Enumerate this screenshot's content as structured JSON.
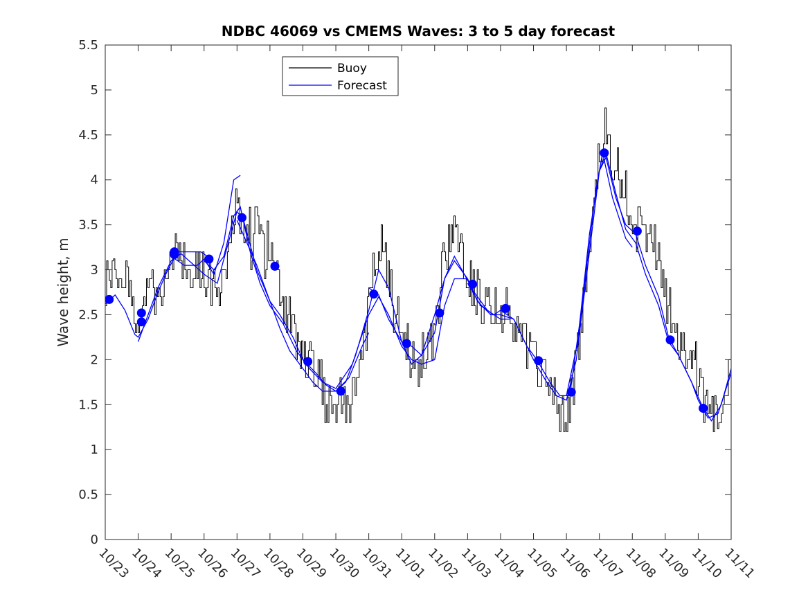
{
  "chart_data": {
    "type": "line",
    "title": "NDBC 46069 vs CMEMS Waves: 3 to 5 day forecast",
    "xlabel": "",
    "ylabel": "Wave height, m",
    "xlim": [
      0,
      19
    ],
    "ylim": [
      0,
      5.5
    ],
    "yticks": [
      0,
      0.5,
      1,
      1.5,
      2,
      2.5,
      3,
      3.5,
      4,
      4.5,
      5,
      5.5
    ],
    "ytick_labels": [
      "0",
      "0.5",
      "1",
      "1.5",
      "2",
      "2.5",
      "3",
      "3.5",
      "4",
      "4.5",
      "5",
      "5.5"
    ],
    "xticks": [
      0,
      1,
      2,
      3,
      4,
      5,
      6,
      7,
      8,
      9,
      10,
      11,
      12,
      13,
      14,
      15,
      16,
      17,
      18,
      19
    ],
    "xtick_labels": [
      "10/23",
      "10/24",
      "10/25",
      "10/26",
      "10/27",
      "10/28",
      "10/29",
      "10/30",
      "10/31",
      "11/01",
      "11/02",
      "11/03",
      "11/04",
      "11/05",
      "11/06",
      "11/07",
      "11/08",
      "11/09",
      "11/10",
      "11/11"
    ],
    "grid": false,
    "legend": {
      "position": "top-left-center",
      "entries": [
        "Buoy",
        "Forecast"
      ]
    },
    "colors": {
      "buoy": "#000000",
      "forecast": "#0000ff",
      "axis": "#262626"
    },
    "buoy_anchors": [
      [
        0.0,
        2.9
      ],
      [
        0.2,
        2.95
      ],
      [
        0.4,
        3.0
      ],
      [
        0.6,
        2.9
      ],
      [
        0.8,
        2.55
      ],
      [
        1.0,
        2.2
      ],
      [
        1.2,
        2.75
      ],
      [
        1.4,
        2.9
      ],
      [
        1.6,
        2.6
      ],
      [
        1.8,
        2.9
      ],
      [
        2.0,
        3.0
      ],
      [
        2.2,
        3.2
      ],
      [
        2.4,
        3.05
      ],
      [
        2.6,
        3.0
      ],
      [
        2.8,
        3.1
      ],
      [
        3.0,
        2.95
      ],
      [
        3.2,
        2.9
      ],
      [
        3.4,
        2.75
      ],
      [
        3.6,
        2.95
      ],
      [
        3.8,
        3.35
      ],
      [
        4.0,
        3.8
      ],
      [
        4.2,
        3.3
      ],
      [
        4.4,
        3.2
      ],
      [
        4.6,
        3.6
      ],
      [
        4.8,
        3.2
      ],
      [
        5.0,
        3.1
      ],
      [
        5.2,
        3.0
      ],
      [
        5.4,
        2.6
      ],
      [
        5.6,
        2.45
      ],
      [
        5.8,
        2.25
      ],
      [
        6.0,
        2.1
      ],
      [
        6.2,
        2.0
      ],
      [
        6.4,
        1.9
      ],
      [
        6.6,
        1.6
      ],
      [
        6.8,
        1.5
      ],
      [
        7.0,
        1.5
      ],
      [
        7.2,
        1.5
      ],
      [
        7.4,
        1.55
      ],
      [
        7.6,
        1.75
      ],
      [
        7.8,
        2.1
      ],
      [
        8.0,
        2.6
      ],
      [
        8.2,
        3.1
      ],
      [
        8.4,
        3.3
      ],
      [
        8.6,
        2.8
      ],
      [
        8.8,
        2.5
      ],
      [
        9.0,
        2.3
      ],
      [
        9.2,
        2.1
      ],
      [
        9.4,
        1.85
      ],
      [
        9.6,
        2.0
      ],
      [
        9.8,
        2.05
      ],
      [
        10.0,
        2.3
      ],
      [
        10.2,
        2.9
      ],
      [
        10.4,
        3.3
      ],
      [
        10.6,
        3.35
      ],
      [
        10.8,
        3.2
      ],
      [
        11.0,
        2.95
      ],
      [
        11.2,
        2.75
      ],
      [
        11.4,
        2.65
      ],
      [
        11.6,
        2.6
      ],
      [
        11.8,
        2.65
      ],
      [
        12.0,
        2.6
      ],
      [
        12.2,
        2.5
      ],
      [
        12.4,
        2.35
      ],
      [
        12.6,
        2.3
      ],
      [
        12.8,
        2.15
      ],
      [
        13.0,
        2.0
      ],
      [
        13.2,
        1.85
      ],
      [
        13.4,
        1.7
      ],
      [
        13.6,
        1.6
      ],
      [
        13.8,
        1.45
      ],
      [
        14.0,
        1.25
      ],
      [
        14.2,
        1.7
      ],
      [
        14.4,
        2.3
      ],
      [
        14.6,
        2.9
      ],
      [
        14.8,
        3.6
      ],
      [
        15.0,
        4.45
      ],
      [
        15.2,
        4.6
      ],
      [
        15.4,
        4.0
      ],
      [
        15.6,
        3.8
      ],
      [
        15.8,
        3.9
      ],
      [
        16.0,
        3.5
      ],
      [
        16.2,
        3.45
      ],
      [
        16.4,
        3.3
      ],
      [
        16.6,
        3.25
      ],
      [
        16.8,
        3.1
      ],
      [
        17.0,
        2.7
      ],
      [
        17.2,
        2.4
      ],
      [
        17.4,
        2.2
      ],
      [
        17.6,
        2.15
      ],
      [
        17.8,
        2.0
      ],
      [
        18.0,
        1.8
      ],
      [
        18.2,
        1.45
      ],
      [
        18.4,
        1.35
      ],
      [
        18.6,
        1.4
      ],
      [
        18.8,
        1.55
      ],
      [
        19.0,
        1.85
      ]
    ],
    "forecast_segments": [
      [
        [
          0.0,
          2.62
        ],
        [
          0.3,
          2.72
        ],
        [
          0.6,
          2.55
        ],
        [
          0.9,
          2.28
        ],
        [
          1.0,
          2.25
        ],
        [
          1.3,
          2.45
        ],
        [
          1.6,
          2.75
        ],
        [
          1.9,
          3.0
        ],
        [
          2.2,
          3.2
        ],
        [
          2.5,
          3.2
        ],
        [
          2.9,
          3.2
        ],
        [
          3.1,
          3.15
        ]
      ],
      [
        [
          1.0,
          2.2
        ],
        [
          1.3,
          2.5
        ],
        [
          1.6,
          2.8
        ],
        [
          2.0,
          3.1
        ],
        [
          2.3,
          3.18
        ],
        [
          2.7,
          3.05
        ],
        [
          3.0,
          2.95
        ],
        [
          3.4,
          2.85
        ],
        [
          3.7,
          3.25
        ],
        [
          4.0,
          3.65
        ],
        [
          4.2,
          3.55
        ],
        [
          4.6,
          3.0
        ],
        [
          5.0,
          2.65
        ],
        [
          5.3,
          2.5
        ],
        [
          5.7,
          2.25
        ],
        [
          6.0,
          2.0
        ],
        [
          6.4,
          1.85
        ],
        [
          6.7,
          1.72
        ],
        [
          7.0,
          1.65
        ],
        [
          7.4,
          1.8
        ],
        [
          7.8,
          2.15
        ],
        [
          8.0,
          2.3
        ]
      ],
      [
        [
          2.0,
          3.15
        ],
        [
          2.4,
          3.05
        ],
        [
          2.8,
          3.05
        ],
        [
          3.0,
          3.12
        ],
        [
          3.3,
          2.95
        ],
        [
          3.6,
          3.3
        ],
        [
          3.9,
          4.0
        ],
        [
          4.1,
          4.05
        ]
      ],
      [
        [
          3.0,
          3.1
        ],
        [
          3.3,
          3.0
        ],
        [
          3.6,
          3.15
        ],
        [
          3.9,
          3.6
        ],
        [
          4.1,
          3.7
        ],
        [
          4.4,
          3.2
        ],
        [
          4.7,
          2.85
        ],
        [
          5.0,
          2.6
        ],
        [
          5.4,
          2.4
        ],
        [
          5.8,
          2.1
        ],
        [
          6.2,
          1.9
        ],
        [
          6.6,
          1.75
        ],
        [
          7.0,
          1.68
        ],
        [
          7.5,
          1.95
        ],
        [
          8.0,
          2.5
        ],
        [
          8.3,
          2.7
        ],
        [
          8.6,
          2.5
        ],
        [
          9.0,
          2.15
        ],
        [
          9.3,
          2.0
        ],
        [
          9.6,
          1.95
        ],
        [
          10.0,
          2.0
        ],
        [
          10.3,
          2.6
        ],
        [
          10.6,
          2.9
        ],
        [
          11.0,
          2.9
        ]
      ],
      [
        [
          4.0,
          3.55
        ],
        [
          4.3,
          3.3
        ],
        [
          4.6,
          3.05
        ],
        [
          5.0,
          2.65
        ],
        [
          5.3,
          2.35
        ],
        [
          5.6,
          2.1
        ],
        [
          6.0,
          1.9
        ],
        [
          6.3,
          1.75
        ],
        [
          6.6,
          1.65
        ],
        [
          7.0,
          1.65
        ],
        [
          7.3,
          1.75
        ],
        [
          7.6,
          2.05
        ],
        [
          8.0,
          2.55
        ],
        [
          8.3,
          3.0
        ],
        [
          8.6,
          2.8
        ],
        [
          9.0,
          2.2
        ],
        [
          9.3,
          1.95
        ],
        [
          9.6,
          2.05
        ],
        [
          10.0,
          2.3
        ],
        [
          10.3,
          2.9
        ],
        [
          10.6,
          3.15
        ],
        [
          10.9,
          2.95
        ],
        [
          11.2,
          2.75
        ],
        [
          11.6,
          2.55
        ],
        [
          12.0,
          2.45
        ],
        [
          12.3,
          2.45
        ]
      ],
      [
        [
          8.0,
          2.8
        ],
        [
          8.3,
          2.72
        ],
        [
          8.6,
          2.45
        ],
        [
          9.0,
          2.2
        ],
        [
          9.3,
          2.15
        ],
        [
          9.6,
          2.05
        ],
        [
          10.0,
          2.5
        ],
        [
          10.3,
          2.9
        ],
        [
          10.6,
          3.1
        ],
        [
          11.0,
          2.9
        ],
        [
          11.3,
          2.65
        ],
        [
          11.7,
          2.5
        ],
        [
          12.0,
          2.5
        ],
        [
          12.4,
          2.45
        ],
        [
          12.8,
          2.15
        ],
        [
          13.0,
          2.0
        ],
        [
          13.4,
          1.75
        ],
        [
          13.7,
          1.6
        ],
        [
          14.0,
          1.55
        ],
        [
          14.3,
          2.0
        ],
        [
          14.6,
          3.0
        ],
        [
          14.9,
          3.9
        ],
        [
          15.1,
          4.3
        ],
        [
          15.4,
          3.8
        ],
        [
          15.8,
          3.35
        ],
        [
          16.0,
          3.25
        ]
      ],
      [
        [
          11.0,
          2.85
        ],
        [
          11.4,
          2.6
        ],
        [
          11.8,
          2.5
        ],
        [
          12.0,
          2.55
        ],
        [
          12.4,
          2.45
        ],
        [
          12.8,
          2.15
        ],
        [
          13.1,
          2.0
        ],
        [
          13.5,
          1.75
        ],
        [
          13.8,
          1.6
        ],
        [
          14.1,
          1.6
        ],
        [
          14.4,
          2.4
        ],
        [
          14.7,
          3.4
        ],
        [
          15.0,
          4.1
        ],
        [
          15.2,
          4.3
        ],
        [
          15.5,
          3.85
        ],
        [
          15.8,
          3.45
        ],
        [
          16.1,
          3.3
        ],
        [
          16.4,
          2.95
        ],
        [
          16.8,
          2.6
        ],
        [
          17.1,
          2.2
        ],
        [
          17.4,
          2.05
        ],
        [
          17.8,
          1.75
        ],
        [
          18.0,
          1.55
        ],
        [
          18.3,
          1.35
        ],
        [
          18.6,
          1.4
        ],
        [
          19.0,
          1.85
        ]
      ],
      [
        [
          14.0,
          1.6
        ],
        [
          14.4,
          2.3
        ],
        [
          14.7,
          3.2
        ],
        [
          15.0,
          4.1
        ],
        [
          15.2,
          4.25
        ],
        [
          15.5,
          3.8
        ],
        [
          15.8,
          3.5
        ],
        [
          16.1,
          3.4
        ],
        [
          16.4,
          3.05
        ],
        [
          16.8,
          2.7
        ],
        [
          17.1,
          2.25
        ],
        [
          17.4,
          2.05
        ],
        [
          17.8,
          1.75
        ],
        [
          18.1,
          1.5
        ],
        [
          18.4,
          1.32
        ],
        [
          18.7,
          1.5
        ],
        [
          19.0,
          1.9
        ]
      ]
    ],
    "forecast_markers": [
      [
        0.12,
        2.67
      ],
      [
        1.1,
        2.52
      ],
      [
        1.1,
        2.42
      ],
      [
        2.1,
        3.2
      ],
      [
        2.1,
        3.17
      ],
      [
        3.15,
        3.12
      ],
      [
        4.15,
        3.58
      ],
      [
        5.15,
        3.04
      ],
      [
        6.15,
        1.98
      ],
      [
        7.15,
        1.65
      ],
      [
        8.15,
        2.73
      ],
      [
        9.15,
        2.18
      ],
      [
        10.15,
        2.52
      ],
      [
        11.15,
        2.84
      ],
      [
        12.15,
        2.57
      ],
      [
        13.15,
        1.99
      ],
      [
        14.15,
        1.64
      ],
      [
        15.15,
        4.3
      ],
      [
        16.15,
        3.43
      ],
      [
        17.15,
        2.22
      ],
      [
        18.15,
        1.46
      ]
    ]
  }
}
